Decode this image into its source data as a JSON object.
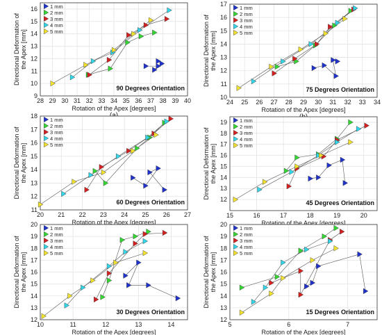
{
  "legend": {
    "series": [
      "1 mm",
      "2 mm",
      "3 mm",
      "4 mm",
      "5 mm"
    ],
    "colors": [
      "#1f33cc",
      "#33d633",
      "#d42020",
      "#33d6e8",
      "#f2e22e"
    ]
  },
  "chart_data": [
    {
      "type": "scatter",
      "panel_label": "(a)",
      "annotation": "90 Degrees Orientation",
      "xlabel": "Rotation of the Apex [degrees]",
      "ylabel": "Directional Deformation of the Apex [mm]",
      "xlim": [
        28,
        40
      ],
      "ylim": [
        9,
        16.5
      ],
      "xticks": [
        "28",
        "29",
        "30",
        "31",
        "32",
        "33",
        "34",
        "35",
        "36",
        "37",
        "38",
        "39",
        "40"
      ],
      "yticks": [
        "9",
        "10",
        "11",
        "12",
        "13",
        "14",
        "15",
        "16"
      ],
      "grid": true,
      "legend_position": "top-left",
      "series": [
        {
          "name": "1 mm",
          "x": [
            36.6,
            37.6,
            37.3,
            37.9,
            37.6
          ],
          "y": [
            11.4,
            11.4,
            11.1,
            11.6,
            11.8
          ]
        },
        {
          "name": "2 mm",
          "x": [
            31.9,
            33.7,
            35.1,
            36.2,
            37.3
          ],
          "y": [
            10.7,
            11.2,
            13.3,
            13.8,
            14.1
          ]
        },
        {
          "name": "3 mm",
          "x": [
            32.0,
            33.6,
            35.2,
            36.6,
            38.3
          ],
          "y": [
            10.7,
            11.9,
            13.9,
            14.7,
            15.2
          ]
        },
        {
          "name": "4 mm",
          "x": [
            30.6,
            32.3,
            33.9,
            36.1,
            38.5
          ],
          "y": [
            10.5,
            11.8,
            12.5,
            14.3,
            15.9
          ]
        },
        {
          "name": "5 mm",
          "x": [
            29.0,
            31.7,
            34.0,
            35.6,
            37.0
          ],
          "y": [
            10.0,
            11.5,
            12.7,
            14.0,
            15.1
          ]
        }
      ]
    },
    {
      "type": "scatter",
      "panel_label": "(b)",
      "annotation": "75 Degrees Orientation",
      "xlabel": "Rotation of the Apex [degrees]",
      "ylabel": "Directional Deformation of the Apex [mm]",
      "xlim": [
        24,
        34
      ],
      "ylim": [
        10,
        17
      ],
      "xticks": [
        "24",
        "25",
        "26",
        "27",
        "28",
        "29",
        "30",
        "31",
        "32",
        "33",
        "34"
      ],
      "yticks": [
        "10",
        "11",
        "12",
        "13",
        "14",
        "15",
        "16",
        "17"
      ],
      "grid": true,
      "legend_position": "top-left",
      "series": [
        {
          "name": "1 mm",
          "x": [
            29.7,
            30.4,
            31.2,
            31.0,
            31.3
          ],
          "y": [
            12.2,
            12.4,
            11.6,
            12.8,
            12.7
          ]
        },
        {
          "name": "2 mm",
          "x": [
            27.2,
            28.5,
            29.8,
            31.1,
            32.2
          ],
          "y": [
            12.3,
            12.7,
            13.9,
            15.4,
            16.5
          ]
        },
        {
          "name": "3 mm",
          "x": [
            27.0,
            28.4,
            29.9,
            30.8,
            32.4
          ],
          "y": [
            11.8,
            12.9,
            14.0,
            15.3,
            16.6
          ]
        },
        {
          "name": "4 mm",
          "x": [
            25.6,
            27.6,
            29.5,
            31.3,
            32.5
          ],
          "y": [
            11.2,
            12.7,
            14.0,
            15.6,
            16.7
          ]
        },
        {
          "name": "5 mm",
          "x": [
            24.6,
            26.8,
            28.8,
            30.5,
            31.8
          ],
          "y": [
            10.7,
            12.3,
            13.6,
            14.8,
            15.9
          ]
        }
      ]
    },
    {
      "type": "scatter",
      "panel_label": "(c)",
      "annotation": "60 Degrees Orientation",
      "xlabel": "Rotation of the Apex [degrees]",
      "ylabel": "Directional Deformation of the Apex [mm]",
      "xlim": [
        20,
        27
      ],
      "ylim": [
        11,
        18
      ],
      "xticks": [
        "20",
        "21",
        "22",
        "23",
        "24",
        "25",
        "26",
        "27"
      ],
      "yticks": [
        "11",
        "12",
        "13",
        "14",
        "15",
        "16",
        "17",
        "18"
      ],
      "grid": true,
      "legend_position": "top-left",
      "series": [
        {
          "name": "1 mm",
          "x": [
            24.4,
            25.0,
            25.6,
            25.2,
            25.9
          ],
          "y": [
            13.4,
            12.8,
            14.1,
            13.8,
            12.5
          ]
        },
        {
          "name": "2 mm",
          "x": [
            22.6,
            23.1,
            24.6,
            25.2,
            25.9
          ],
          "y": [
            13.9,
            13.0,
            15.6,
            16.4,
            17.5
          ]
        },
        {
          "name": "3 mm",
          "x": [
            22.2,
            22.9,
            24.2,
            25.4,
            26.2
          ],
          "y": [
            12.5,
            14.2,
            15.4,
            16.7,
            17.8
          ]
        },
        {
          "name": "4 mm",
          "x": [
            21.1,
            22.4,
            23.7,
            25.1,
            26.0
          ],
          "y": [
            12.2,
            13.6,
            15.0,
            16.4,
            17.6
          ]
        },
        {
          "name": "5 mm",
          "x": [
            20.0,
            21.6,
            23.0,
            24.4,
            25.5
          ],
          "y": [
            11.4,
            13.1,
            13.8,
            15.4,
            16.6
          ]
        }
      ]
    },
    {
      "type": "scatter",
      "panel_label": "(d)",
      "annotation": "45 Degrees Orientation",
      "xlabel": "Rotation of the Apex [degrees]",
      "ylabel": "Directional Deformation of the Apex [mm]",
      "xlim": [
        15,
        20.5
      ],
      "ylim": [
        11,
        19.5
      ],
      "xticks": [
        "15",
        "16",
        "17",
        "18",
        "19",
        "20"
      ],
      "yticks": [
        "12",
        "13",
        "14",
        "15",
        "16",
        "17",
        "18",
        "19"
      ],
      "grid": true,
      "legend_position": "top-left",
      "series": [
        {
          "name": "1 mm",
          "x": [
            18.0,
            18.3,
            18.7,
            19.2,
            19.3
          ],
          "y": [
            13.9,
            14.0,
            15.1,
            15.6,
            13.5
          ]
        },
        {
          "name": "2 mm",
          "x": [
            17.1,
            17.5,
            18.3,
            19.0,
            19.5
          ],
          "y": [
            14.6,
            15.8,
            16.1,
            17.5,
            19.0
          ]
        },
        {
          "name": "3 mm",
          "x": [
            17.2,
            17.5,
            18.5,
            19.0,
            20.1
          ],
          "y": [
            13.2,
            14.8,
            15.9,
            17.4,
            18.7
          ]
        },
        {
          "name": "4 mm",
          "x": [
            16.1,
            17.3,
            18.3,
            19.0,
            19.8
          ],
          "y": [
            12.9,
            14.5,
            16.0,
            17.2,
            18.4
          ]
        },
        {
          "name": "5 mm",
          "x": [
            15.2,
            16.3,
            17.5,
            18.4,
            19.5
          ],
          "y": [
            12.0,
            13.6,
            15.0,
            16.0,
            17.2
          ]
        }
      ]
    },
    {
      "type": "scatter",
      "panel_label": "(e)",
      "annotation": "30 Degrees Orientation",
      "xlabel": "Rotation of the Apex [degrees]",
      "ylabel": "Directional Deformation of the Apex [mm]",
      "xlim": [
        10,
        14.5
      ],
      "ylim": [
        12,
        20
      ],
      "xticks": [
        "10",
        "11",
        "12",
        "13",
        "14"
      ],
      "yticks": [
        "12",
        "13",
        "14",
        "15",
        "16",
        "17",
        "18",
        "19",
        "20"
      ],
      "grid": true,
      "legend_position": "top-left",
      "series": [
        {
          "name": "1 mm",
          "x": [
            12.6,
            13.0,
            12.7,
            13.3,
            14.2
          ],
          "y": [
            15.7,
            16.8,
            14.9,
            14.9,
            13.8
          ]
        },
        {
          "name": "2 mm",
          "x": [
            11.9,
            12.1,
            12.5,
            12.9,
            13.3
          ],
          "y": [
            13.9,
            15.3,
            18.7,
            19.0,
            19.4
          ]
        },
        {
          "name": "3 mm",
          "x": [
            11.7,
            12.1,
            12.9,
            13.2,
            13.8
          ],
          "y": [
            13.7,
            15.9,
            18.4,
            19.2,
            19.3
          ]
        },
        {
          "name": "4 mm",
          "x": [
            10.8,
            11.3,
            12.1,
            12.6,
            13.2
          ],
          "y": [
            13.2,
            14.7,
            16.5,
            17.7,
            18.6
          ]
        },
        {
          "name": "5 mm",
          "x": [
            10.1,
            10.9,
            11.6,
            12.3,
            13.2
          ],
          "y": [
            12.3,
            14.0,
            15.3,
            16.8,
            17.6
          ]
        }
      ]
    },
    {
      "type": "scatter",
      "panel_label": "(f)",
      "annotation": "15 Degrees Orientation",
      "xlabel": "Rotation of the Apex [degrees]",
      "ylabel": "Directional Deformation of the Apex [mm]",
      "xlim": [
        5,
        7.5
      ],
      "ylim": [
        12,
        20
      ],
      "xticks": [
        "5",
        "6",
        "7"
      ],
      "yticks": [
        "12",
        "13",
        "14",
        "15",
        "16",
        "17",
        "18",
        "19",
        "20"
      ],
      "grid": true,
      "legend_position": "top-left",
      "series": [
        {
          "name": "1 mm",
          "x": [
            6.3,
            6.4,
            6.5,
            7.2,
            7.3
          ],
          "y": [
            14.8,
            15.1,
            16.5,
            17.5,
            14.4
          ]
        },
        {
          "name": "2 mm",
          "x": [
            5.2,
            5.8,
            6.2,
            6.6,
            6.8
          ],
          "y": [
            14.7,
            15.6,
            17.8,
            19.0,
            19.7
          ]
        },
        {
          "name": "3 mm",
          "x": [
            5.7,
            6.2,
            6.2,
            6.7,
            6.9
          ],
          "y": [
            15.1,
            16.1,
            14.1,
            18.7,
            19.4
          ]
        },
        {
          "name": "4 mm",
          "x": [
            5.4,
            5.6,
            5.9,
            6.3,
            6.7
          ],
          "y": [
            13.5,
            14.7,
            16.8,
            17.9,
            18.6
          ]
        },
        {
          "name": "5 mm",
          "x": [
            5.2,
            5.7,
            5.9,
            6.4,
            6.8
          ],
          "y": [
            12.6,
            14.2,
            15.5,
            17.0,
            18.0
          ]
        }
      ]
    }
  ]
}
